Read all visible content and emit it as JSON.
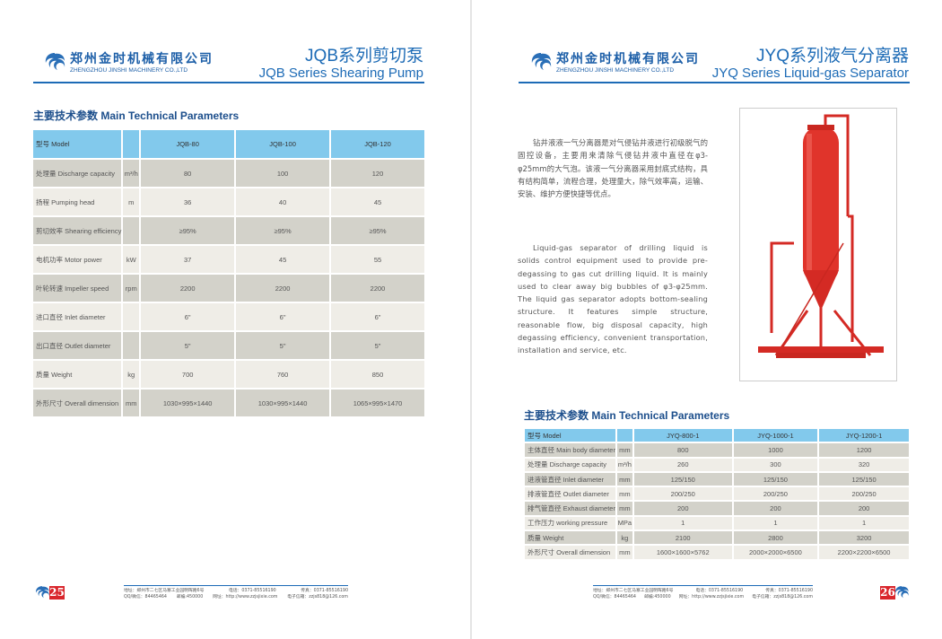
{
  "company": {
    "name_cn": "郑州金时机械有限公司",
    "name_en": "ZHENGZHOU JINSHI MACHINERY CO.,LTD"
  },
  "left_page": {
    "title_cn": "JQB系列剪切泵",
    "title_en": "JQB Series Shearing Pump",
    "section_cn": "主要技术参数",
    "section_en": "Main Technical Parameters",
    "table": {
      "header": [
        "型号 Model",
        "",
        "JQB-80",
        "JQB-100",
        "JQB-120"
      ],
      "rows": [
        [
          "处理量 Discharge capacity",
          "m³/h",
          "80",
          "100",
          "120"
        ],
        [
          "扬程 Pumping head",
          "m",
          "36",
          "40",
          "45"
        ],
        [
          "剪切效率 Shearing efficiency",
          "",
          "≥95%",
          "≥95%",
          "≥95%"
        ],
        [
          "电机功率 Motor power",
          "kW",
          "37",
          "45",
          "55"
        ],
        [
          "叶轮转速 Impeller speed",
          "rpm",
          "2200",
          "2200",
          "2200"
        ],
        [
          "进口直径 Inlet diameter",
          "",
          "6\"",
          "6\"",
          "6\""
        ],
        [
          "出口直径 Outlet diameter",
          "",
          "5\"",
          "5\"",
          "5\""
        ],
        [
          "质量 Weight",
          "kg",
          "700",
          "760",
          "850"
        ],
        [
          "外形尺寸 Overall dimension",
          "mm",
          "1030×995×1440",
          "1030×995×1440",
          "1065×995×1470"
        ]
      ]
    },
    "page_number": "25"
  },
  "right_page": {
    "title_cn": "JYQ系列液气分离器",
    "title_en": "JYQ Series Liquid-gas Separator",
    "desc_cn": "钻井液液一气分离器是对气侵钻井液进行初级脱气的固控设备，主要用来清除气侵钻井液中直径在φ3-φ25mm的大气泡。该液一气分离器采用封底式结构，具有结构简单，流程合理，处理量大，除气效率高，运输、安装、维护方便快捷等优点。",
    "desc_en": "Liquid-gas separator of drilling liquid is solids control equipment used to provide pre-degassing to gas cut drilling liquid. It is mainly used to clear away big bubbles of φ3-φ25mm. The liquid gas separator adopts bottom-sealing structure. It features simple structure, reasonable flow, big disposal capacity, high degassing efficiency, convenient transportation, installation and service, etc.",
    "section_cn": "主要技术参数",
    "section_en": "Main Technical Parameters",
    "table": {
      "header": [
        "型号 Model",
        "",
        "JYQ-800-1",
        "JYQ-1000-1",
        "JYQ-1200-1"
      ],
      "rows": [
        [
          "主体直径 Main body diameter",
          "mm",
          "800",
          "1000",
          "1200"
        ],
        [
          "处理量 Discharge capacity",
          "m³/h",
          "260",
          "300",
          "320"
        ],
        [
          "进液管直径 Inlet diameter",
          "mm",
          "125/150",
          "125/150",
          "125/150"
        ],
        [
          "排液管直径 Outlet diameter",
          "mm",
          "200/250",
          "200/250",
          "200/250"
        ],
        [
          "排气管直径 Exhaust diameter",
          "mm",
          "200",
          "200",
          "200"
        ],
        [
          "工作压力 working pressure",
          "MPa",
          "1",
          "1",
          "1"
        ],
        [
          "质量 Weight",
          "kg",
          "2100",
          "2800",
          "3200"
        ],
        [
          "外形尺寸 Overall dimension",
          "mm",
          "1600×1600×5762",
          "2000×2000×6500",
          "2200×2200×6500"
        ]
      ]
    },
    "page_number": "26"
  },
  "footer": {
    "address": "地址：郑州市二七区马寨工业园明晖路6号",
    "phone": "电话：0371-85516190",
    "fax": "传真：0371-85516190",
    "qq": "QQ/微信：84465464",
    "postcode": "邮编:450000",
    "website": "网址：http://www.zzjsjixie.com",
    "email": "电子信箱：zzjs818@126.com"
  },
  "colors": {
    "brand_blue": "#1d6bb6",
    "table_header": "#82c9ec",
    "row_dark": "#d3d2ca",
    "row_light": "#efede7",
    "page_number_bg": "#d9262c",
    "equipment_red": "#e0342b"
  }
}
